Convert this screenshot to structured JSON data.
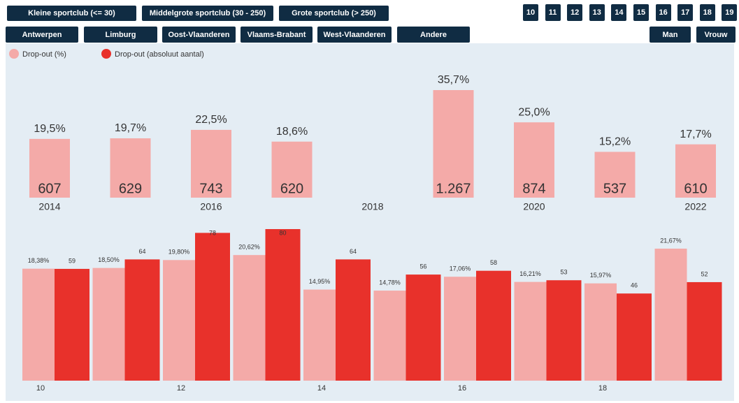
{
  "filters": {
    "club_size": [
      "Kleine sportclub (<= 30)",
      "Middelgrote sportclub (30 - 250)",
      "Grote sportclub (> 250)"
    ],
    "ages": [
      "10",
      "11",
      "12",
      "13",
      "14",
      "15",
      "16",
      "17",
      "18",
      "19"
    ],
    "provinces": [
      "Antwerpen",
      "Limburg",
      "Oost-Vlaanderen",
      "Vlaams-Brabant",
      "West-Vlaanderen",
      "Andere"
    ],
    "gender": [
      "Man",
      "Vrouw"
    ]
  },
  "chart_data": [
    {
      "type": "bar",
      "categories": [
        "2014",
        null,
        "2016",
        null,
        "2018",
        null,
        "2020",
        null,
        "2022"
      ],
      "series": [
        {
          "name": "Drop-out (%)",
          "color": "#f4aaa8",
          "values": [
            19.5,
            19.7,
            22.5,
            18.6,
            null,
            35.7,
            25.0,
            15.2,
            17.7
          ],
          "value_labels": [
            "19,5%",
            "19,7%",
            "22,5%",
            "18,6%",
            null,
            "35,7%",
            "25,0%",
            "15,2%",
            "17,7%"
          ]
        },
        {
          "name": "Drop-out (absoluut aantal)",
          "color": "#e8312b",
          "values": [
            607,
            629,
            743,
            620,
            null,
            1267,
            874,
            537,
            610
          ],
          "value_labels": [
            "607",
            "629",
            "743",
            "620",
            null,
            "1.267",
            "874",
            "537",
            "610"
          ]
        }
      ]
    },
    {
      "type": "bar",
      "categories": [
        "10",
        null,
        "12",
        null,
        "14",
        null,
        "16",
        null,
        "18",
        null
      ],
      "series": [
        {
          "color": "#f4aaa8",
          "values": [
            18.38,
            18.5,
            19.8,
            20.62,
            14.95,
            14.78,
            17.06,
            16.21,
            15.97,
            21.67
          ],
          "value_labels": [
            "18,38%",
            "18,50%",
            "19,80%",
            "20,62%",
            "14,95%",
            "14,78%",
            "17,06%",
            "16,21%",
            "15,97%",
            "21,67%"
          ]
        },
        {
          "color": "#e8312b",
          "values": [
            59,
            64,
            78,
            80,
            64,
            56,
            58,
            53,
            46,
            52
          ]
        }
      ]
    }
  ]
}
